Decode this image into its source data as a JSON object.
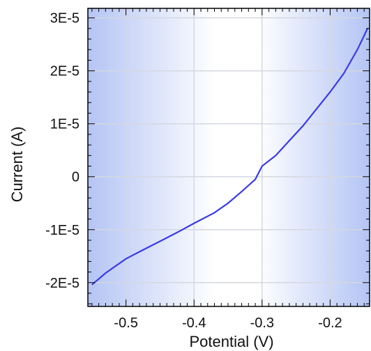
{
  "chart_data": {
    "type": "line",
    "title": "",
    "xlabel": "Potential (V)",
    "ylabel": "Current (A)",
    "xlim": [
      -0.556,
      -0.142
    ],
    "ylim": [
      -2.45e-05,
      3.18e-05
    ],
    "x_ticks": [
      -0.5,
      -0.4,
      -0.3,
      -0.2
    ],
    "x_tick_labels": [
      "-0.5",
      "-0.4",
      "-0.3",
      "-0.2"
    ],
    "y_ticks": [
      -2e-05,
      -1e-05,
      0,
      1e-05,
      2e-05,
      3e-05
    ],
    "y_tick_labels": [
      "-2E-5",
      "-1E-5",
      "0",
      "1E-5",
      "2E-5",
      "3E-5"
    ],
    "grid": true,
    "legend": "none",
    "colors": {
      "line": "#3a3ae8",
      "background_edge": "#b4c4f4",
      "background_center": "#ffffff",
      "grid": "#d4d8e0"
    },
    "series": [
      {
        "x": [
          -0.55,
          -0.53,
          -0.5,
          -0.47,
          -0.45,
          -0.42,
          -0.4,
          -0.37,
          -0.35,
          -0.33,
          -0.31,
          -0.3,
          -0.28,
          -0.26,
          -0.24,
          -0.22,
          -0.2,
          -0.18,
          -0.16,
          -0.145
        ],
        "y": [
          -2.04e-05,
          -1.82e-05,
          -1.55e-05,
          -1.35e-05,
          -1.22e-05,
          -1.02e-05,
          -8.8e-06,
          -6.8e-06,
          -5e-06,
          -2.8e-06,
          -5e-07,
          2e-06,
          4e-06,
          6.8e-06,
          9.6e-06,
          1.28e-05,
          1.6e-05,
          1.95e-05,
          2.4e-05,
          2.8e-05
        ]
      }
    ]
  }
}
